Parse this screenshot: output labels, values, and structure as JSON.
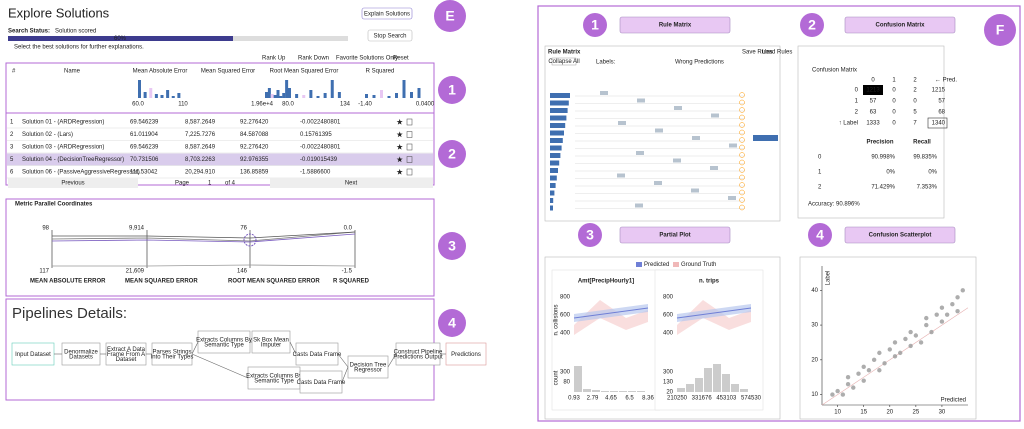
{
  "explore": {
    "title": "Explore Solutions",
    "explain_button": "Explain Solutions",
    "status_label": "Search Status:",
    "status": "Solution scored",
    "progress": "60%",
    "stop_button": "Stop Search",
    "hint": "Select the best solutions for further explanations.",
    "controls": [
      "Rank Up",
      "Rank Down",
      "Favorite Solutions Only",
      "Reset"
    ],
    "badge": "E",
    "section_badges": [
      "1",
      "2",
      "3",
      "4"
    ],
    "summary": {
      "headers": [
        "#",
        "Name",
        "Mean Absolute Error",
        "Mean Squared Error",
        "Root Mean Squared Error",
        "R Squared"
      ],
      "ticks": [
        "60.0",
        "110",
        "1.96e+4",
        "80.0",
        "134",
        "-1.40",
        "0.0400"
      ]
    },
    "solutions": {
      "rows": [
        [
          "1",
          "Solution 01 - (ARDRegression)",
          "69.546239",
          "8,587.2649",
          "92.276420",
          "-0.0022480801"
        ],
        [
          "2",
          "Solution 02 - (Lars)",
          "61.011904",
          "7,225.7276",
          "84.587088",
          "0.15761395"
        ],
        [
          "3",
          "Solution 03 - (ARDRegression)",
          "69.546239",
          "8,587.2649",
          "92.276420",
          "-0.0022480801"
        ],
        [
          "5",
          "Solution 04 - (DecisionTreeRegressor)",
          "70.731506",
          "8,703.2263",
          "92.976355",
          "-0.019015439"
        ],
        [
          "6",
          "Solution 06 - (PassiveAggressiveRegressor)",
          "111.53042",
          "20,294.910",
          "136.85859",
          "-1.5886600"
        ]
      ],
      "pager": {
        "previous": "Previous",
        "page_label": "Page",
        "page": "1",
        "of": "of 4",
        "next": "Next"
      }
    },
    "parallel": {
      "title": "Metric Parallel Coordinates",
      "axes": [
        "MEAN ABSOLUTE ERROR",
        "MEAN SQUARED ERROR",
        "ROOT MEAN SQUARED ERROR",
        "R SQUARED"
      ],
      "top": [
        "98",
        "9,914",
        "76",
        "0.0"
      ],
      "bottom": [
        "117",
        "21,609",
        "146",
        "-1.5"
      ]
    },
    "pipelines": {
      "title": "Pipelines Details:",
      "nodes": [
        "Input Dataset",
        "Denormalize Datasets",
        "Extract A Data Frame From A Dataset",
        "Parses Strings Into Their Types",
        "Extracts Columns By Semantic Type",
        "Sk Box Mean Imputer",
        "Casts Data Frame",
        "Extracts Columns By Semantic Type",
        "Casts Data Frame",
        "Decision Tree Regressor",
        "Construct Pipeline Predictions Output",
        "Predictions"
      ]
    }
  },
  "explain": {
    "badge": "F",
    "panel_badges": [
      "1",
      "2",
      "3",
      "4"
    ],
    "panel_titles": [
      "Rule Matrix",
      "Confusion Matrix",
      "Partial Plot",
      "Confusion Scatterplot"
    ],
    "rule_matrix": {
      "title": "Rule Matrix",
      "collapse": "Collapse All",
      "labels": "Labels:",
      "wrong": "Wrong Predictions",
      "save": "Save Rules",
      "load": "Load Rules"
    },
    "confusion": {
      "title": "Confusion Matrix",
      "header": [
        "0",
        "1",
        "2",
        "← Pred."
      ],
      "rows": [
        [
          "0",
          "1213",
          "0",
          "2",
          "1215"
        ],
        [
          "1",
          "57",
          "0",
          "0",
          "57"
        ],
        [
          "2",
          "63",
          "0",
          "5",
          "68"
        ],
        [
          "↑ Label",
          "1333",
          "0",
          "7",
          "1340"
        ]
      ],
      "metric_header": [
        "Precision",
        "Recall"
      ],
      "metrics": [
        [
          "0",
          "90.998%",
          "99.835%"
        ],
        [
          "1",
          "0%",
          "0%"
        ],
        [
          "2",
          "71.429%",
          "7.353%"
        ]
      ],
      "accuracy": "Accuracy: 90.896%"
    },
    "partial": {
      "legend": [
        "Predicted",
        "Ground Truth"
      ],
      "ylabel": "n. collisions",
      "count_label": "count",
      "plots": [
        {
          "title": "Amt[PrecipHourly1]",
          "yticks": [
            "800",
            "600",
            "400"
          ],
          "count_ticks": [
            "300",
            "80"
          ],
          "xticks": [
            "0.93",
            "2.79",
            "4.65",
            "6.5",
            "8.36"
          ]
        },
        {
          "title": "n. trips",
          "yticks": [
            "800",
            "600",
            "400"
          ],
          "count_ticks": [
            "300",
            "130",
            "20"
          ],
          "xticks": [
            "210250",
            "331676",
            "453103",
            "574530"
          ]
        }
      ]
    },
    "scatter": {
      "type": "scatter",
      "xlabel": "Predicted",
      "ylabel": "Label",
      "xlim": [
        7,
        35
      ],
      "ylim": [
        7,
        47
      ],
      "xticks": [
        10,
        15,
        20,
        25,
        30
      ],
      "yticks": [
        10,
        20,
        30,
        40
      ],
      "color": "#999999",
      "x": [
        9,
        10,
        11,
        12,
        12,
        13,
        14,
        15,
        15,
        16,
        17,
        18,
        18,
        19,
        20,
        21,
        21,
        22,
        23,
        24,
        24,
        25,
        26,
        27,
        27,
        28,
        29,
        30,
        30,
        31,
        32,
        33,
        33,
        34
      ],
      "y": [
        10,
        11,
        10,
        13,
        15,
        12,
        16,
        14,
        18,
        17,
        20,
        17,
        22,
        19,
        23,
        21,
        25,
        22,
        26,
        24,
        28,
        27,
        25,
        30,
        32,
        28,
        33,
        31,
        35,
        33,
        36,
        34,
        38,
        40
      ]
    }
  }
}
